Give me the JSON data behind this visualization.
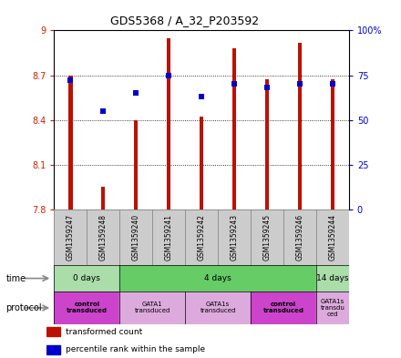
{
  "title": "GDS5368 / A_32_P203592",
  "samples": [
    "GSM1359247",
    "GSM1359248",
    "GSM1359240",
    "GSM1359241",
    "GSM1359242",
    "GSM1359243",
    "GSM1359245",
    "GSM1359246",
    "GSM1359244"
  ],
  "bar_values": [
    8.7,
    7.95,
    8.4,
    8.95,
    8.42,
    8.88,
    8.67,
    8.92,
    8.67
  ],
  "bar_bottom": 7.8,
  "blue_values": [
    72,
    55,
    65,
    75,
    63,
    70,
    68,
    70,
    70
  ],
  "ylim_left": [
    7.8,
    9.0
  ],
  "ylim_right": [
    0,
    100
  ],
  "yticks_left": [
    7.8,
    8.1,
    8.4,
    8.7,
    9.0
  ],
  "ytick_labels_left": [
    "7.8",
    "8.1",
    "8.4",
    "8.7",
    "9"
  ],
  "yticks_right": [
    0,
    25,
    50,
    75,
    100
  ],
  "ytick_labels_right": [
    "0",
    "25",
    "50",
    "75",
    "100%"
  ],
  "bar_color": "#bb1100",
  "blue_color": "#0000cc",
  "bar_width": 0.12,
  "time_groups": [
    {
      "label": "0 days",
      "start": 0,
      "end": 2,
      "color": "#aaddaa"
    },
    {
      "label": "4 days",
      "start": 2,
      "end": 8,
      "color": "#66cc66"
    },
    {
      "label": "14 days",
      "start": 8,
      "end": 9,
      "color": "#aaddaa"
    }
  ],
  "protocol_groups": [
    {
      "label": "control\ntransduced",
      "start": 0,
      "end": 2,
      "color": "#cc44cc",
      "bold": true
    },
    {
      "label": "GATA1\ntransduced",
      "start": 2,
      "end": 4,
      "color": "#ddaadd",
      "bold": false
    },
    {
      "label": "GATA1s\ntransduced",
      "start": 4,
      "end": 6,
      "color": "#ddaadd",
      "bold": false
    },
    {
      "label": "control\ntransduced",
      "start": 6,
      "end": 8,
      "color": "#cc44cc",
      "bold": true
    },
    {
      "label": "GATA1s\ntransdu\nced",
      "start": 8,
      "end": 9,
      "color": "#ddaadd",
      "bold": false
    }
  ],
  "legend_items": [
    {
      "color": "#bb1100",
      "label": "transformed count"
    },
    {
      "color": "#0000cc",
      "label": "percentile rank within the sample"
    }
  ],
  "bg_color": "#ffffff",
  "left_tick_color": "#cc2200",
  "right_tick_color": "#0000cc",
  "sample_bg_color": "#cccccc",
  "sample_border_color": "#888888"
}
